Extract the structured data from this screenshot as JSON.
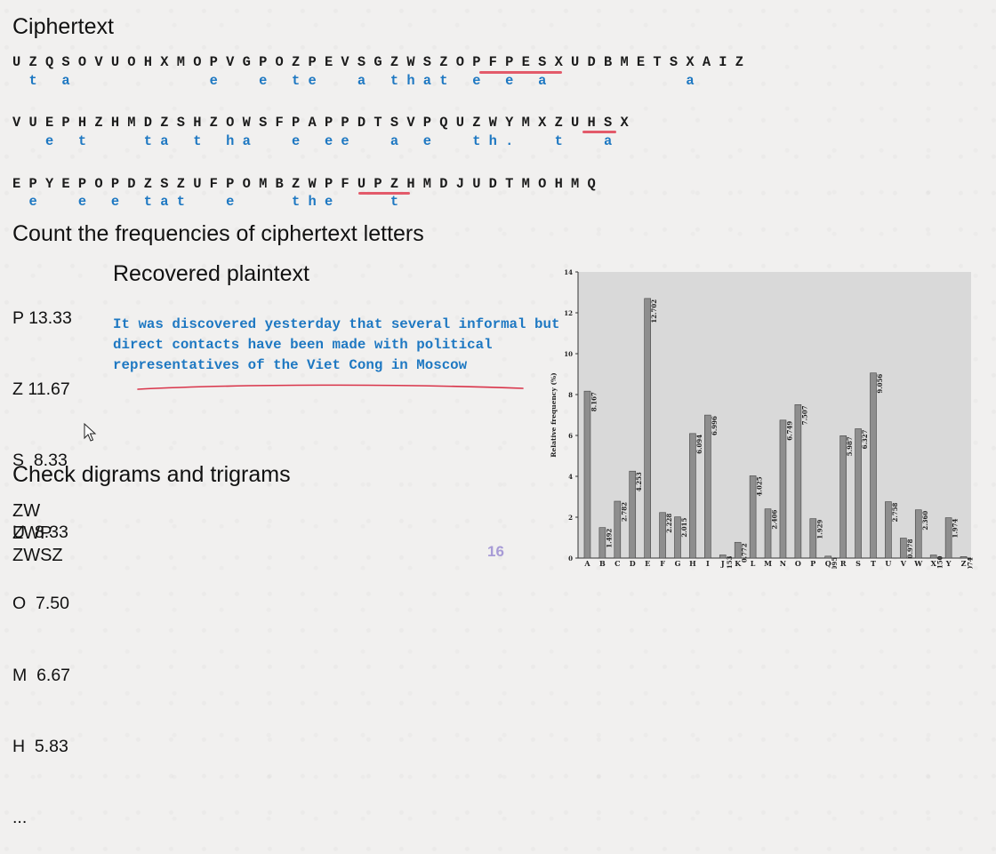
{
  "headings": {
    "ciphertext": "Ciphertext",
    "frequencies": "Count the frequencies of ciphertext letters",
    "recovered": "Recovered plaintext",
    "digrams": "Check digrams and trigrams"
  },
  "cipher_rows": [
    {
      "cipher": "U Z Q S O V U O H X M O P V G P O Z P E V S G Z W S Z O P F P E S X U D B M E T S X A I Z",
      "plain": "  t   a                 e     e   t e     a   t h a t   e   e   a                 a      "
    },
    {
      "cipher": "V U E P H Z H M D Z S H Z O W S F P A P P D T S V P Q U Z W Y M X Z U H S X",
      "plain": "    e   t       t a   t   h a     e   e e     a   e     t h .     t     a  "
    },
    {
      "cipher": "E P Y E P O P D Z S Z U F P O M B Z W P F U P Z H M D J U D T M O H M Q",
      "plain": "  e     e   e   t a t     e       t h e       t                        "
    }
  ],
  "frequency_list": [
    "P 13.33",
    "Z 11.67",
    "S  8.33",
    "U  8.33",
    "O  7.50",
    "M  6.67",
    "H  5.83",
    "..."
  ],
  "recovered_plaintext": [
    "It was discovered yesterday that several informal but",
    "direct contacts have been made with political",
    "representatives of the Viet Cong in Moscow"
  ],
  "grams": [
    "ZW",
    "ZWP",
    "ZWSZ"
  ],
  "page_number": "16",
  "colors": {
    "cipher": "#1b1b1b",
    "plain": "#1e78c2",
    "underline_marker": "#e35a6a",
    "bar": "#8e8e8e",
    "pen": "#d9344a"
  },
  "chart_data": {
    "type": "bar",
    "ylabel": "Relative frequency (%)",
    "ylim": [
      0,
      14
    ],
    "yticks": [
      0,
      2,
      4,
      6,
      8,
      10,
      12,
      14
    ],
    "categories": [
      "A",
      "B",
      "C",
      "D",
      "E",
      "F",
      "G",
      "H",
      "I",
      "J",
      "K",
      "L",
      "M",
      "N",
      "O",
      "P",
      "Q",
      "R",
      "S",
      "T",
      "U",
      "V",
      "W",
      "X",
      "Y",
      "Z"
    ],
    "values": [
      8.167,
      1.492,
      2.782,
      4.253,
      12.702,
      2.228,
      2.015,
      6.094,
      6.996,
      0.153,
      0.772,
      4.025,
      2.406,
      6.749,
      7.507,
      1.929,
      0.095,
      5.987,
      6.327,
      9.056,
      2.758,
      0.978,
      2.36,
      0.15,
      1.974,
      0.074
    ],
    "value_labels": [
      "8.167",
      "1.492",
      "2.782",
      "4.253",
      "12.702",
      "2.228",
      "2.015",
      "6.094",
      "6.996",
      "0.153",
      "0.772",
      "4.025",
      "2.406",
      "6.749",
      "7.507",
      "1.929",
      "0.095",
      "5.987",
      "6.327",
      "9.056",
      "2.758",
      "0.978",
      "2.360",
      "0.150",
      "1.974",
      "0.074"
    ],
    "grid": false
  }
}
